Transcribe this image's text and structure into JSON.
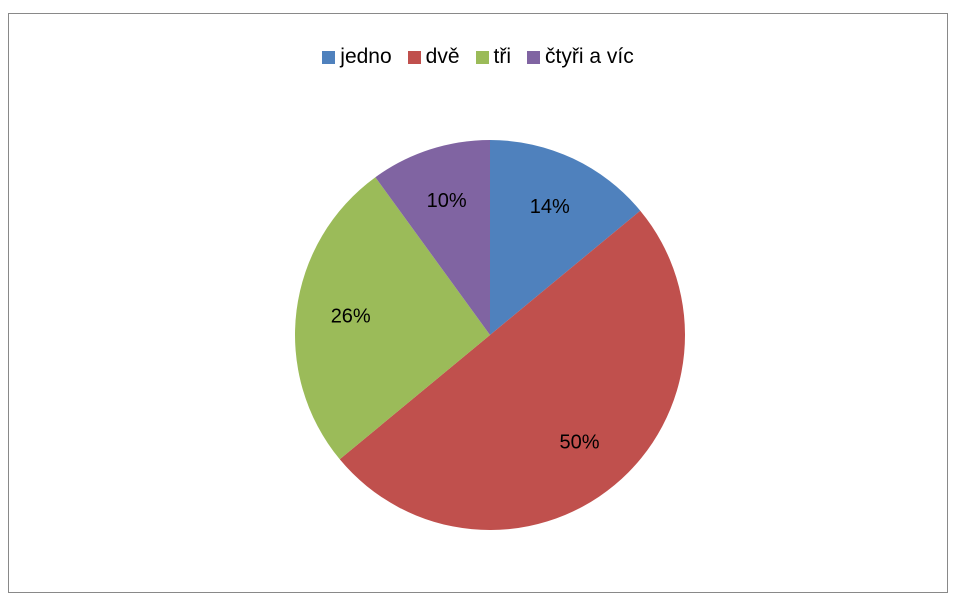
{
  "chart_data": {
    "type": "pie",
    "title": "",
    "legend_position": "top",
    "categories": [
      "jedno",
      "dvě",
      "tři",
      "čtyři a víc"
    ],
    "values": [
      14,
      50,
      26,
      10
    ],
    "data_labels": [
      "14%",
      "50%",
      "26%",
      "10%"
    ],
    "colors": [
      "#4f81bd",
      "#c0504d",
      "#9bbb59",
      "#8064a2"
    ]
  }
}
